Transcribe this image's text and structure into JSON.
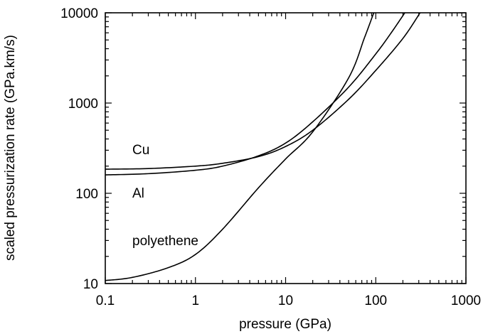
{
  "chart_data": {
    "type": "line",
    "title": "",
    "xlabel": "pressure (GPa)",
    "ylabel": "scaled pressurization rate (GPa.km/s)",
    "x_scale": "log",
    "y_scale": "log",
    "xlim": [
      0.1,
      1000
    ],
    "ylim": [
      10,
      10000
    ],
    "x_ticks": [
      0.1,
      1,
      10,
      100,
      1000
    ],
    "x_tick_labels": [
      "0.1",
      "1",
      "10",
      "100",
      "1000"
    ],
    "y_ticks": [
      10,
      100,
      1000,
      10000
    ],
    "y_tick_labels": [
      "10",
      "100",
      "1000",
      "10000"
    ],
    "grid": false,
    "legend": "none",
    "series": [
      {
        "name": "Cu",
        "x": [
          0.1,
          0.3,
          1,
          2,
          5,
          10,
          20,
          50,
          100,
          200,
          310
        ],
        "y": [
          185,
          188,
          200,
          215,
          255,
          330,
          500,
          1100,
          2300,
          5200,
          10000
        ]
      },
      {
        "name": "Al",
        "x": [
          0.1,
          0.3,
          1,
          2,
          5,
          10,
          20,
          50,
          100,
          150,
          210
        ],
        "y": [
          160,
          165,
          180,
          200,
          260,
          360,
          620,
          1500,
          3500,
          6100,
          10000
        ]
      },
      {
        "name": "polyethene",
        "x": [
          0.1,
          0.2,
          0.5,
          1,
          2,
          5,
          10,
          20,
          50,
          75,
          95
        ],
        "y": [
          10.8,
          11.7,
          15,
          21,
          40,
          115,
          240,
          480,
          1900,
          5300,
          10000
        ]
      }
    ]
  }
}
